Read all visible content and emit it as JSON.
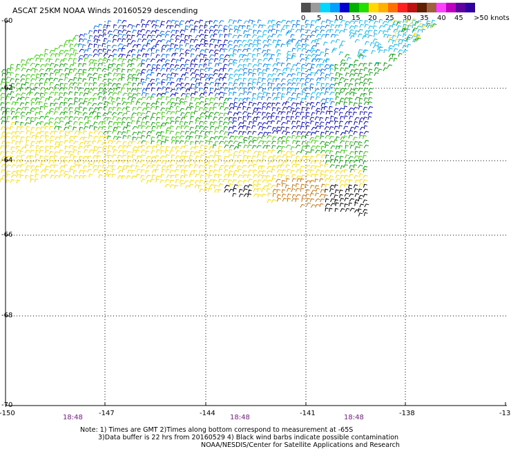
{
  "title": "ASCAT 25KM NOAA Winds 20160529 descending",
  "legend": {
    "colors": [
      "#505050",
      "#9a9a9a",
      "#00d8ff",
      "#00a0ff",
      "#0000d0",
      "#00b000",
      "#20e000",
      "#ffd800",
      "#ffb000",
      "#ff7000",
      "#ff2020",
      "#c01010",
      "#602000",
      "#a06040",
      "#ff40ff",
      "#c000c0",
      "#6000a0",
      "#3000a0"
    ],
    "labels": [
      "0",
      "5",
      "10",
      "15",
      "20",
      "25",
      "30",
      "35",
      "40",
      "45"
    ],
    "units_label": ">50 knots"
  },
  "map": {
    "lat_labels": [
      "-60",
      "-62",
      "-64",
      "-66",
      "-68",
      "-70"
    ],
    "lon_labels": [
      "-150",
      "-147",
      "-144",
      "-141",
      "-138",
      "-13"
    ],
    "time_labels": [
      "18:48",
      "18:48",
      "18:48"
    ]
  },
  "notes": {
    "line1": "Note: 1) Times are GMT 2)Times along bottom correspond to measurement at -65S",
    "line2": "3)Data buffer is 22 hrs from 20160529 4) Black wind barbs indicate possible contamination",
    "line3": "NOAA/NESDIS/Center for Satellite Applications and Research"
  },
  "wind_colors": {
    "dark_blue": "#0000c8",
    "mid_blue": "#0070ff",
    "light_blue": "#00b8ff",
    "cyan": "#00d8ff",
    "green": "#00a000",
    "light_green": "#30d000",
    "yellow": "#ffdd00",
    "orange": "#d07000",
    "black": "#000000"
  }
}
